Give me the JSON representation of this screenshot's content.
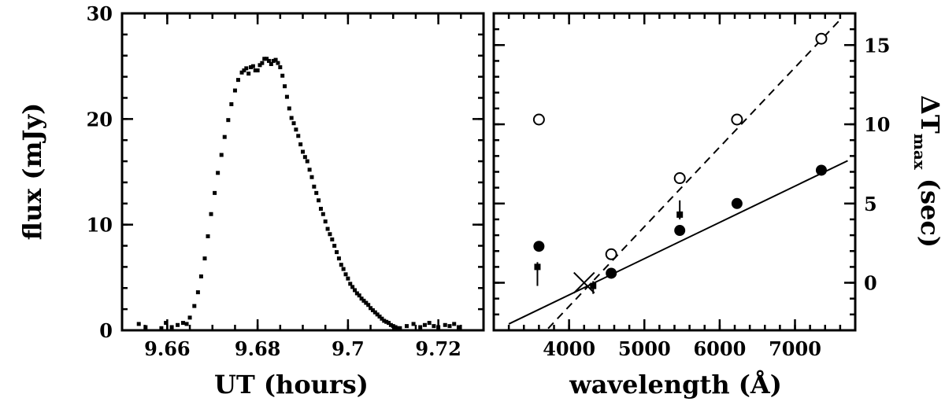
{
  "chart_data": [
    {
      "type": "scatter",
      "title": "",
      "xlabel": "UT (hours)",
      "ylabel": "flux (mJy)",
      "xlim": [
        9.65,
        9.73
      ],
      "ylim": [
        0,
        30
      ],
      "xticks": [
        9.66,
        9.68,
        9.7,
        9.72
      ],
      "xtick_labels": [
        "9.66",
        "9.68",
        "9.7",
        "9.72"
      ],
      "yticks": [
        0,
        10,
        20,
        30
      ],
      "ytick_labels": [
        "0",
        "10",
        "20",
        "30"
      ],
      "grid": false,
      "series": [
        {
          "marker": "small-filled-square",
          "x": [
            9.6537,
            9.6552,
            9.6587,
            9.6597,
            9.661,
            9.6623,
            9.6635,
            9.6643,
            9.665,
            9.666,
            9.6668,
            9.6675,
            9.6683,
            9.669,
            9.6697,
            9.6705,
            9.6712,
            9.672,
            9.6727,
            9.6735,
            9.6742,
            9.675,
            9.6757,
            9.6765,
            9.677,
            9.6775,
            9.678,
            9.6785,
            9.679,
            9.6795,
            9.68,
            9.6805,
            9.681,
            9.6815,
            9.682,
            9.6825,
            9.683,
            9.6835,
            9.684,
            9.6845,
            9.685,
            9.6855,
            9.686,
            9.6865,
            9.687,
            9.6875,
            9.688,
            9.6885,
            9.689,
            9.6895,
            9.69,
            9.6905,
            9.691,
            9.6915,
            9.692,
            9.6925,
            9.693,
            9.6935,
            9.694,
            9.6945,
            9.695,
            9.6955,
            9.696,
            9.6965,
            9.697,
            9.6975,
            9.698,
            9.6985,
            9.699,
            9.6995,
            9.7,
            9.7005,
            9.701,
            9.7015,
            9.702,
            9.7025,
            9.703,
            9.7035,
            9.704,
            9.7045,
            9.705,
            9.7055,
            9.706,
            9.7065,
            9.707,
            9.7075,
            9.708,
            9.7085,
            9.709,
            9.7095,
            9.71,
            9.7105,
            9.711,
            9.7115,
            9.713,
            9.7145,
            9.716,
            9.717,
            9.718,
            9.719,
            9.72,
            9.7215,
            9.7225,
            9.7235,
            9.7245
          ],
          "y": [
            0.6,
            0.3,
            0.2,
            0.7,
            0.3,
            0.5,
            0.7,
            0.6,
            1.2,
            2.3,
            3.6,
            5.1,
            6.8,
            8.9,
            11.0,
            13.0,
            14.9,
            16.6,
            18.3,
            19.9,
            21.4,
            22.7,
            23.7,
            24.4,
            24.6,
            24.8,
            24.3,
            24.9,
            25.0,
            24.6,
            24.6,
            25.1,
            25.3,
            25.7,
            25.7,
            25.5,
            25.2,
            25.5,
            25.6,
            25.3,
            24.9,
            24.1,
            23.1,
            22.1,
            21.0,
            20.1,
            19.6,
            19.0,
            18.4,
            17.6,
            16.9,
            16.4,
            16.0,
            15.2,
            14.5,
            13.6,
            13.0,
            12.3,
            11.5,
            11.0,
            10.3,
            9.6,
            9.1,
            8.6,
            8.0,
            7.4,
            6.8,
            6.2,
            5.8,
            5.3,
            4.9,
            4.4,
            4.1,
            3.8,
            3.5,
            3.3,
            3.0,
            2.8,
            2.6,
            2.4,
            2.1,
            1.9,
            1.7,
            1.5,
            1.3,
            1.1,
            0.9,
            0.8,
            0.7,
            0.5,
            0.4,
            0.3,
            0.2,
            0.2,
            0.4,
            0.6,
            0.3,
            0.5,
            0.7,
            0.4,
            0.3,
            0.5,
            0.4,
            0.6,
            0.3
          ]
        }
      ]
    },
    {
      "type": "scatter",
      "title": "",
      "xlabel": "wavelength (Å)",
      "ylabel": "ΔT",
      "ylabel_subscript": "max",
      "ylabel_unit": " (sec)",
      "y_axis_position": "right",
      "xlim": [
        3000,
        7800
      ],
      "ylim": [
        -3,
        17
      ],
      "xticks": [
        4000,
        5000,
        6000,
        7000
      ],
      "xtick_labels": [
        "4000",
        "5000",
        "6000",
        "7000"
      ],
      "yticks": [
        0,
        5,
        10,
        15
      ],
      "ytick_labels": [
        "0",
        "5",
        "10",
        "15"
      ],
      "grid": false,
      "series": [
        {
          "marker": "open-circle",
          "x": [
            3600,
            4560,
            5470,
            6230,
            7350
          ],
          "y": [
            10.3,
            1.8,
            6.6,
            10.3,
            15.4
          ]
        },
        {
          "marker": "filled-circle",
          "x": [
            3600,
            4560,
            5470,
            6230,
            7350
          ],
          "y": [
            2.3,
            0.6,
            3.3,
            5.0,
            7.1
          ],
          "yerr": [
            0.2,
            0.15,
            0.15,
            0.2,
            0.2
          ]
        },
        {
          "marker": "small-filled-square",
          "x": [
            3580,
            4320,
            5470
          ],
          "y": [
            1.0,
            -0.2,
            4.3
          ],
          "yerr_low": [
            1.2,
            0.5,
            0.3
          ],
          "yerr_high": [
            0.3,
            0.3,
            0.9
          ]
        },
        {
          "marker": "cross",
          "x": [
            4200
          ],
          "y": [
            0.0
          ]
        },
        {
          "line": "dashed",
          "x": [
            3600,
            7600
          ],
          "y": [
            -3.5,
            16.6
          ]
        },
        {
          "line": "solid",
          "x": [
            3200,
            7700
          ],
          "y": [
            -2.6,
            7.7
          ]
        }
      ]
    }
  ]
}
